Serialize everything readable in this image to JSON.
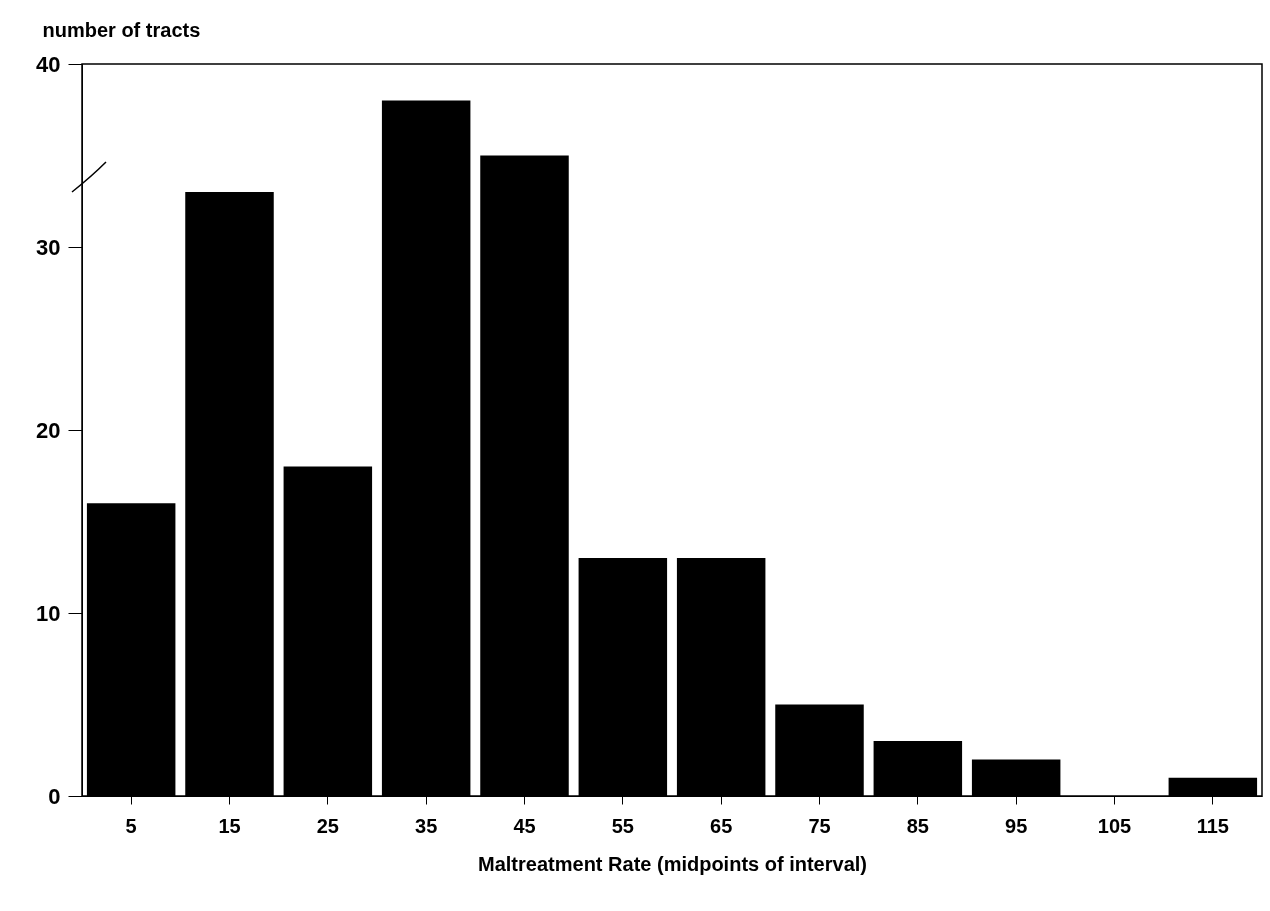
{
  "chart_data": {
    "type": "bar",
    "ylabel": "number of tracts",
    "xlabel": "Maltreatment Rate (midpoints of interval)",
    "categories": [
      "5",
      "15",
      "25",
      "35",
      "45",
      "55",
      "65",
      "75",
      "85",
      "95",
      "105",
      "115"
    ],
    "values": [
      16,
      33,
      18,
      38,
      35,
      13,
      13,
      5,
      3,
      2,
      0,
      1
    ],
    "color": "#000000",
    "ylim": [
      0,
      40
    ],
    "yticks": [
      0,
      10,
      20,
      30,
      40
    ]
  }
}
